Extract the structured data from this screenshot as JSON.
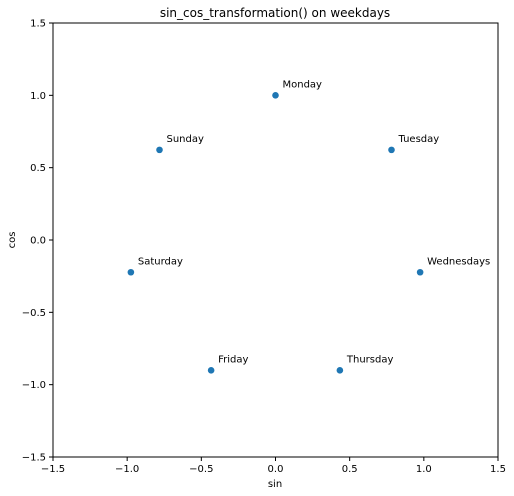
{
  "chart_data": {
    "type": "scatter",
    "title": "sin_cos_transformation() on weekdays",
    "xlabel": "sin",
    "ylabel": "cos",
    "xlim": [
      -1.5,
      1.5
    ],
    "ylim": [
      -1.5,
      1.5
    ],
    "xticks": [
      -1.5,
      -1.0,
      -0.5,
      0.0,
      0.5,
      1.0,
      1.5
    ],
    "yticks": [
      -1.5,
      -1.0,
      -0.5,
      0.0,
      0.5,
      1.0,
      1.5
    ],
    "xtick_labels": [
      "−1.5",
      "−1.0",
      "−0.5",
      "0.0",
      "0.5",
      "1.0",
      "1.5"
    ],
    "ytick_labels": [
      "−1.5",
      "−1.0",
      "−0.5",
      "0.0",
      "0.5",
      "1.0",
      "1.5"
    ],
    "grid": false,
    "marker_color": "#1f77b4",
    "points": [
      {
        "label": "Monday",
        "x": 0.0,
        "y": 1.0
      },
      {
        "label": "Tuesday",
        "x": 0.782,
        "y": 0.623
      },
      {
        "label": "Wednesdays",
        "x": 0.975,
        "y": -0.223
      },
      {
        "label": "Thursday",
        "x": 0.434,
        "y": -0.901
      },
      {
        "label": "Friday",
        "x": -0.434,
        "y": -0.901
      },
      {
        "label": "Saturday",
        "x": -0.975,
        "y": -0.223
      },
      {
        "label": "Sunday",
        "x": -0.782,
        "y": 0.623
      }
    ]
  }
}
